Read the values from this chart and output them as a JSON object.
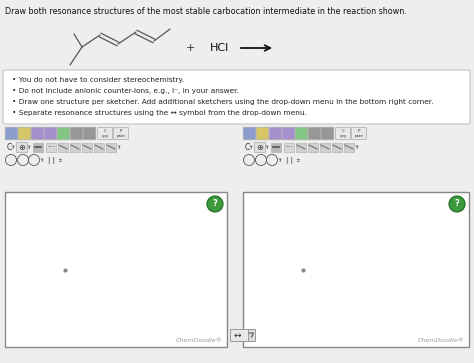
{
  "title": "Draw both resonance structures of the most stable carbocation intermediate in the reaction shown.",
  "bullet_points": [
    "You do not have to consider stereochemistry.",
    "Do not include anionic counter-ions, e.g., I⁻, in your answer.",
    "Draw one structure per sketcher. Add additional sketchers using the drop-down menu in the bottom right corner.",
    "Separate resonance structures using the ↔ symbol from the drop-down menu."
  ],
  "hcl_text": "HCl",
  "chemdoodle_text": "ChemDoodle®",
  "bg_color": "#eeeeee",
  "box_bg": "#ffffff",
  "box_border": "#cccccc",
  "sketch_border": "#aaaaaa",
  "green_icon_color": "#3d9a3d",
  "green_icon_border": "#1a6b1a"
}
